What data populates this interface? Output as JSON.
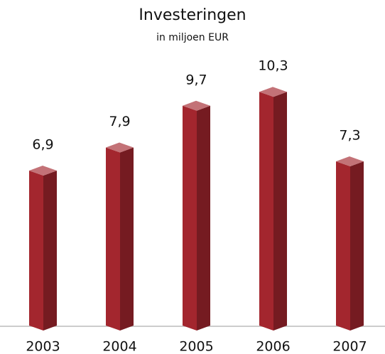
{
  "chart_data": {
    "type": "bar3d",
    "title": "Investeringen",
    "subtitle": "in miljoen EUR",
    "categories": [
      "2003",
      "2004",
      "2005",
      "2006",
      "2007"
    ],
    "values": [
      6.9,
      7.9,
      9.7,
      10.3,
      7.3
    ],
    "value_labels": [
      "6,9",
      "7,9",
      "9,7",
      "10,3",
      "7,3"
    ],
    "color": "#a3262e"
  }
}
